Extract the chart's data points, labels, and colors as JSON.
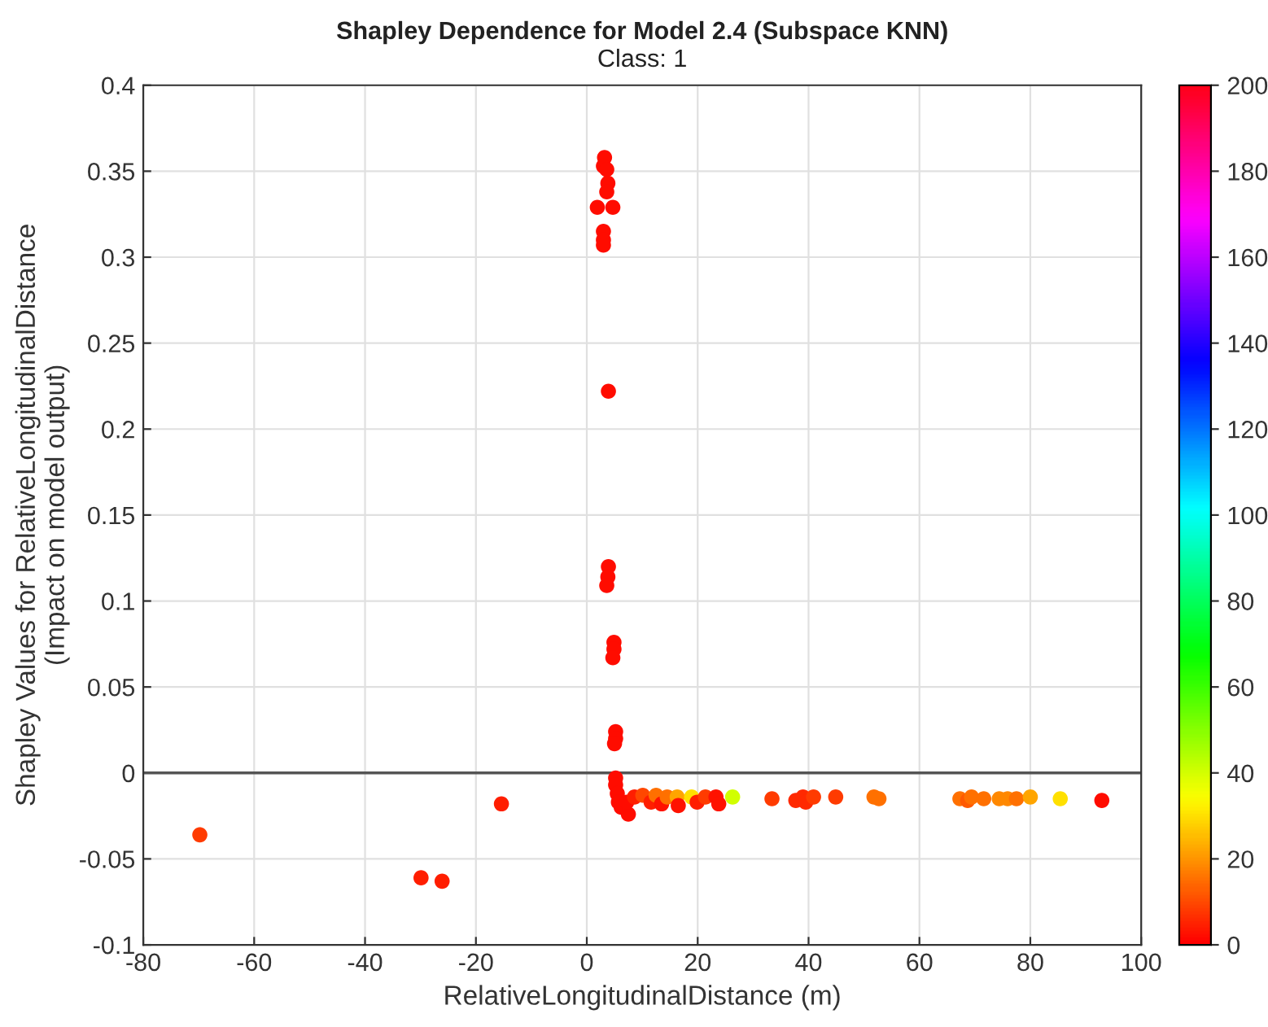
{
  "chart_data": {
    "type": "scatter",
    "title": "Shapley Dependence for Model 2.4 (Subspace KNN)",
    "subtitle": "Class: 1",
    "xlabel": "RelativeLongitudinalDistance (m)",
    "ylabel": "Shapley Values for RelativeLongitudinalDistance\n(Impact on model output)",
    "x": [
      3.2,
      3.0,
      3.6,
      3.8,
      3.6,
      1.9,
      4.7,
      3.0,
      3.0,
      3.0,
      3.9,
      3.9,
      3.8,
      3.6,
      4.9,
      4.9,
      4.7,
      5.2,
      5.2,
      5.0,
      -69.8,
      -29.9,
      -26.1,
      -15.4,
      5.2,
      5.2,
      5.5,
      5.7,
      6.2,
      7.5,
      7.2,
      8.6,
      10.1,
      11.6,
      12.5,
      13.5,
      14.5,
      16.3,
      16.5,
      18.9,
      19.9,
      21.4,
      23.3,
      23.8,
      26.3,
      33.4,
      37.7,
      39.0,
      39.5,
      40.9,
      44.9,
      51.8,
      52.7,
      67.3,
      68.7,
      69.4,
      71.6,
      74.4,
      75.9,
      77.5,
      80.0,
      85.4,
      92.9
    ],
    "values": [
      0.358,
      0.353,
      0.351,
      0.343,
      0.338,
      0.329,
      0.329,
      0.315,
      0.31,
      0.307,
      0.222,
      0.12,
      0.114,
      0.109,
      0.076,
      0.072,
      0.067,
      0.024,
      0.02,
      0.017,
      -0.036,
      -0.061,
      -0.063,
      -0.018,
      -0.003,
      -0.007,
      -0.012,
      -0.017,
      -0.02,
      -0.024,
      -0.017,
      -0.014,
      -0.013,
      -0.017,
      -0.013,
      -0.018,
      -0.014,
      -0.014,
      -0.019,
      -0.014,
      -0.017,
      -0.014,
      -0.014,
      -0.018,
      -0.014,
      -0.015,
      -0.016,
      -0.014,
      -0.017,
      -0.014,
      -0.014,
      -0.014,
      -0.015,
      -0.015,
      -0.016,
      -0.014,
      -0.015,
      -0.015,
      -0.015,
      -0.015,
      -0.014,
      -0.015,
      -0.016
    ],
    "cvalues": [
      2,
      2,
      2,
      2,
      2,
      2,
      2,
      2,
      2,
      2,
      2,
      2,
      2,
      2,
      2,
      2,
      2,
      2,
      2,
      2,
      8,
      4,
      4,
      4,
      2,
      2,
      2,
      2,
      2,
      2,
      2,
      4,
      10,
      4,
      15,
      3,
      15,
      22,
      3,
      30,
      4,
      8,
      3,
      3,
      40,
      8,
      6,
      6,
      6,
      8,
      8,
      15,
      15,
      15,
      12,
      15,
      15,
      18,
      18,
      15,
      22,
      30,
      2
    ],
    "xlim": [
      -80,
      100
    ],
    "xticks": [
      -80,
      -60,
      -40,
      -20,
      0,
      20,
      40,
      60,
      80,
      100
    ],
    "ylim": [
      -0.1,
      0.4
    ],
    "yticks": [
      -0.1,
      -0.05,
      0,
      0.05,
      0.1,
      0.15,
      0.2,
      0.25,
      0.3,
      0.35,
      0.4
    ],
    "clim": [
      0,
      200
    ],
    "cticks": [
      0,
      20,
      40,
      60,
      80,
      100,
      120,
      140,
      160,
      180,
      200
    ],
    "ref_lines": [
      {
        "axis": "y",
        "value": 0,
        "color": "#555555"
      }
    ],
    "grid": true,
    "marker": "circle"
  }
}
